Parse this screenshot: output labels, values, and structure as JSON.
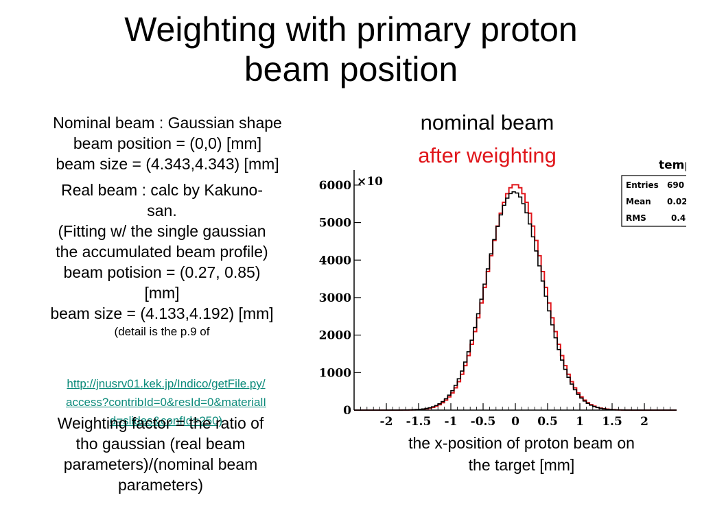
{
  "slide": {
    "title_lines": [
      "Weighting with primary proton",
      "beam position"
    ],
    "nominal_block": [
      "Nominal beam : Gaussian shape",
      "beam position = (0,0) [mm]",
      "beam size = (4.343,4.343) [mm]"
    ],
    "real_block": [
      "Real beam : calc by Kakuno-",
      "san.",
      "(Fitting w/ the single gaussian",
      "the accumulated beam profile)",
      "beam potision = (0.27, 0.85)",
      "[mm]",
      "beam size = (4.133,4.192) [mm]"
    ],
    "detail_text": "(detail is the p.9 of",
    "link_lines": [
      "http://jnusrv01.kek.jp/Indico/getFile.py/",
      "access?contribId=0&resId=0&materialI",
      "d=slides&confId=250)"
    ],
    "weight_block": [
      "Weighting factor = the ratio of",
      "tho gaussian (real beam",
      "parameters)/(nominal beam",
      "parameters)"
    ],
    "label_nominal": "nominal beam",
    "label_after": "after weighting",
    "caption_lines": [
      "the x-position of proton beam on",
      "the target [mm]"
    ]
  },
  "stats_box": {
    "name": "temp",
    "rows": [
      {
        "label": "Entries",
        "value": "690"
      },
      {
        "label": "Mean",
        "value": "0.02"
      },
      {
        "label": "RMS",
        "value": "0.4"
      }
    ]
  },
  "chart_data": {
    "type": "line",
    "x_tick_labels": [
      "-2",
      "-1.5",
      "-1",
      "-0.5",
      "0",
      "0.5",
      "1",
      "1.5",
      "2"
    ],
    "y_tick_labels": [
      "0",
      "1000",
      "2000",
      "3000",
      "4000",
      "5000",
      "6000"
    ],
    "xlim": [
      -2.5,
      2.5
    ],
    "ylim": [
      0,
      6400
    ],
    "y_multiplier_label": "×10",
    "series": [
      {
        "color": "#e0161b",
        "mean": 0.0,
        "sigma": 0.43,
        "peak": 6020
      },
      {
        "color": "#000000",
        "mean": -0.02,
        "sigma": 0.434,
        "peak": 5820
      }
    ]
  }
}
